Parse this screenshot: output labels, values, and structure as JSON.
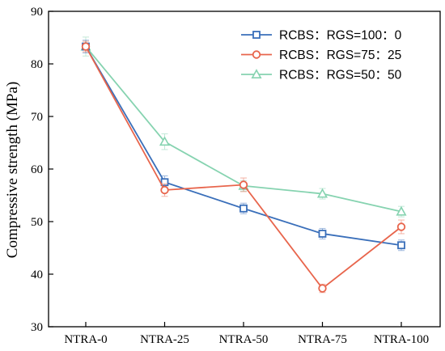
{
  "chart_data": {
    "type": "line",
    "categories": [
      "NTRA-0",
      "NTRA-25",
      "NTRA-50",
      "NTRA-75",
      "NTRA-100"
    ],
    "ylabel": "Compressive strength (MPa)",
    "xlabel": "",
    "ylim": [
      30,
      90
    ],
    "yticks": [
      "30",
      "40",
      "50",
      "60",
      "70",
      "80",
      "90"
    ],
    "grid": false,
    "legend_position": "top-right",
    "series": [
      {
        "name": "RCBS：RGS=100：0",
        "color": "#3a6fba",
        "marker": "square",
        "values": [
          83.3,
          57.5,
          52.5,
          47.7,
          45.5
        ],
        "errors": [
          1.2,
          1.2,
          1.0,
          1.0,
          1.0
        ]
      },
      {
        "name": "RCBS：RGS=75：25",
        "color": "#e8654c",
        "marker": "circle",
        "values": [
          83.3,
          56.0,
          57.0,
          37.3,
          49.0
        ],
        "errors": [
          1.0,
          1.2,
          1.3,
          0.8,
          1.3
        ]
      },
      {
        "name": "RCBS：RGS=50：50",
        "color": "#86d3b0",
        "marker": "triangle",
        "values": [
          83.3,
          65.2,
          56.8,
          55.3,
          51.9
        ],
        "errors": [
          1.8,
          1.5,
          1.0,
          1.0,
          1.0
        ]
      }
    ]
  }
}
